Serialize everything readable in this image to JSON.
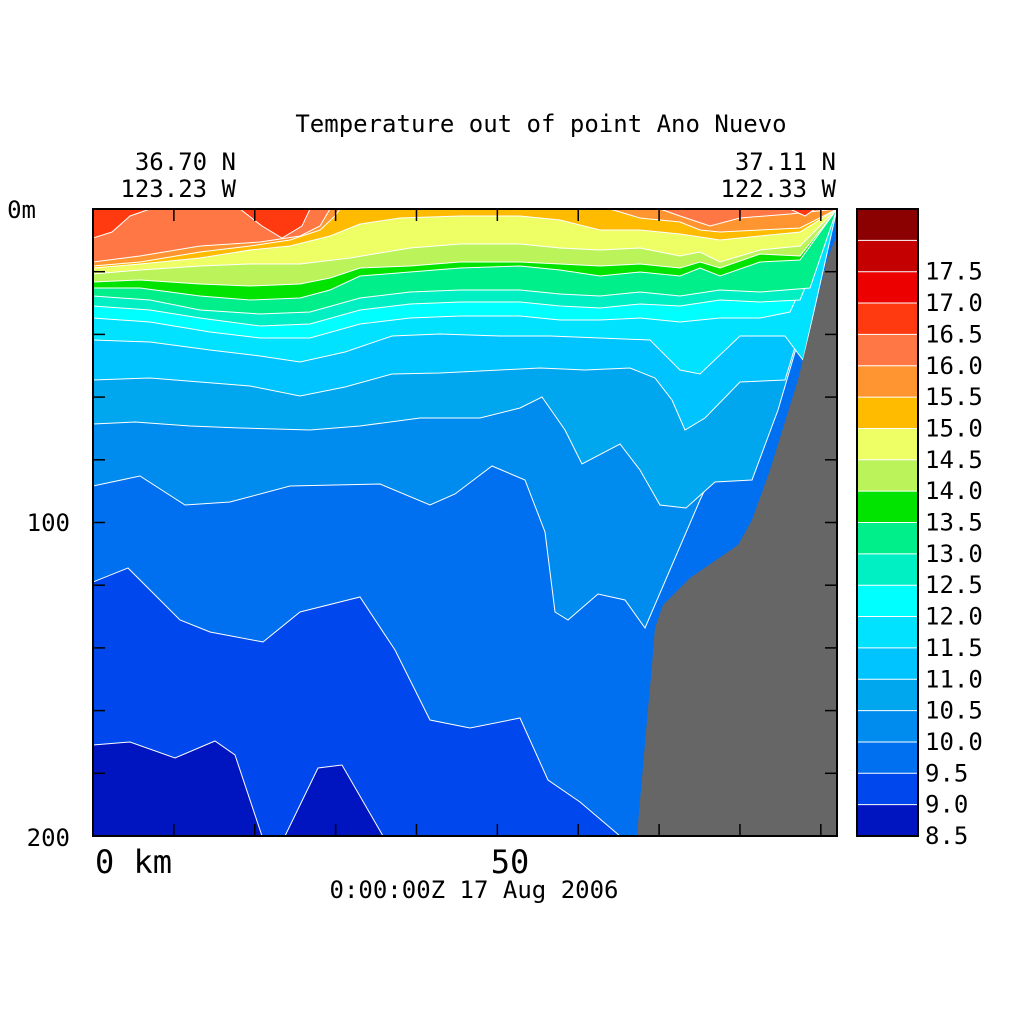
{
  "chart_data": {
    "type": "heatmap",
    "title": "Temperature out of point Ano Nuevo",
    "start_lat": "36.70 N",
    "start_lon": "123.23 W",
    "end_lat": "37.11 N",
    "end_lon": "122.33 W",
    "timestamp": "0:00:00Z  17 Aug 2006",
    "xlabel": "km",
    "ylabel": "m",
    "x_ticks": [
      "0 km",
      "50"
    ],
    "y_ticks": [
      "0m",
      "100",
      "200"
    ],
    "xlim": [
      0,
      92
    ],
    "ylim": [
      0,
      200
    ],
    "y_reversed": true,
    "contour_interval": 0.5,
    "colorbar": {
      "levels": [
        {
          "label": "",
          "value": 18.0,
          "color": "#8b0000"
        },
        {
          "label": "17.5",
          "value": 17.5,
          "color": "#c40000"
        },
        {
          "label": "17.0",
          "value": 17.0,
          "color": "#ed0000"
        },
        {
          "label": "16.5",
          "value": 16.5,
          "color": "#ff3a10"
        },
        {
          "label": "16.0",
          "value": 16.0,
          "color": "#ff7744"
        },
        {
          "label": "15.5",
          "value": 15.5,
          "color": "#ff9530"
        },
        {
          "label": "15.0",
          "value": 15.0,
          "color": "#ffbb00"
        },
        {
          "label": "14.5",
          "value": 14.5,
          "color": "#eeff66"
        },
        {
          "label": "14.0",
          "value": 14.0,
          "color": "#bbf45a"
        },
        {
          "label": "13.5",
          "value": 13.5,
          "color": "#00e400"
        },
        {
          "label": "13.0",
          "value": 13.0,
          "color": "#00ef8a"
        },
        {
          "label": "12.5",
          "value": 12.5,
          "color": "#00f0c4"
        },
        {
          "label": "12.0",
          "value": 12.0,
          "color": "#00ffff"
        },
        {
          "label": "11.5",
          "value": 11.5,
          "color": "#00e2ff"
        },
        {
          "label": "11.0",
          "value": 11.0,
          "color": "#00c4ff"
        },
        {
          "label": "10.5",
          "value": 10.5,
          "color": "#00a6ee"
        },
        {
          "label": "10.0",
          "value": 10.0,
          "color": "#008cee"
        },
        {
          "label": "9.5",
          "value": 9.5,
          "color": "#0070f0"
        },
        {
          "label": "9.0",
          "value": 9.0,
          "color": "#0048ee"
        },
        {
          "label": "8.5",
          "value": 8.5,
          "color": "#0014c0"
        }
      ]
    },
    "land_color": "#666666",
    "contour_color": "#ffffff"
  }
}
